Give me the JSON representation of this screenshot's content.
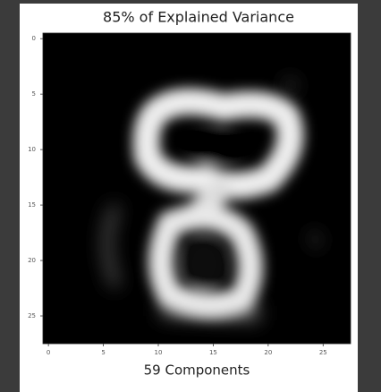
{
  "chart_data": {
    "type": "image",
    "title": "85% of Explained Variance",
    "x_label": "59 Components",
    "xlim": [
      -0.5,
      27.5
    ],
    "xticks": [
      0,
      5,
      10,
      15,
      20,
      25
    ],
    "ylim": [
      27.5,
      -0.5
    ],
    "yticks": [
      0,
      5,
      10,
      15,
      20,
      25
    ]
  }
}
